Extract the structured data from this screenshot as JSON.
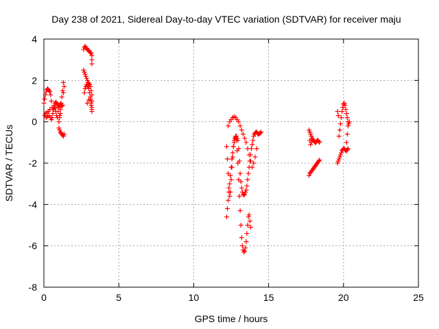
{
  "chart_data": {
    "type": "scatter",
    "title": "Day 238 of 2021, Sidereal Day-to-day VTEC variation (SDTVAR) for receiver maju",
    "xlabel": "GPS time / hours",
    "ylabel": "SDTVAR / TECUs",
    "xlim": [
      0,
      25
    ],
    "ylim": [
      -8,
      4
    ],
    "xticks": [
      "0",
      "5",
      "10",
      "15",
      "20",
      "25"
    ],
    "yticks": [
      "-8",
      "-6",
      "-4",
      "-2",
      "0",
      "2",
      "4"
    ],
    "grid": true,
    "marker": "plus",
    "color": "#ff0000",
    "series": [
      {
        "x": [
          0.0,
          0.05,
          0.1,
          0.15,
          0.2,
          0.25,
          0.3,
          0.35,
          0.4,
          0.45,
          0.5,
          0.55,
          0.4,
          0.3,
          0.2,
          0.1,
          0.05,
          0.15,
          0.25,
          0.35,
          0.45,
          0.5,
          0.55,
          0.6,
          0.65,
          0.7,
          0.75,
          0.8,
          0.85,
          0.9,
          0.95,
          1.0,
          0.95,
          0.9,
          0.85,
          0.8,
          0.75,
          0.7,
          0.65,
          0.6,
          1.0,
          1.05,
          1.1,
          1.15,
          1.2,
          1.25,
          1.3,
          1.35,
          1.05,
          1.1,
          1.15,
          1.2,
          1.25,
          1.3,
          1.35,
          1.3,
          1.25,
          1.2,
          1.15,
          1.1,
          1.05,
          1.0,
          1.05,
          1.1
        ],
        "y": [
          0.9,
          1.1,
          1.3,
          1.45,
          1.55,
          1.6,
          1.55,
          1.5,
          1.45,
          1.3,
          1.0,
          0.7,
          0.6,
          0.5,
          0.45,
          0.4,
          0.3,
          0.2,
          0.25,
          0.3,
          0.2,
          0.1,
          0.2,
          0.4,
          0.6,
          0.7,
          0.65,
          0.5,
          0.3,
          0.2,
          0.5,
          0.7,
          0.75,
          0.85,
          0.9,
          0.95,
          0.9,
          0.8,
          0.7,
          0.6,
          -0.3,
          -0.4,
          -0.5,
          -0.55,
          -0.6,
          -0.65,
          -0.7,
          -0.6,
          0.8,
          0.85,
          0.8,
          0.75,
          0.8,
          1.4,
          1.7,
          1.9,
          1.5,
          1.2,
          0.9,
          0.6,
          0.3,
          0.0,
          0.2,
          0.4
        ]
      },
      {
        "x": [
          2.65,
          2.7,
          2.75,
          2.8,
          2.85,
          2.9,
          2.95,
          3.0,
          3.05,
          3.1,
          3.15,
          3.2,
          3.2,
          3.2,
          2.65,
          2.7,
          2.75,
          2.8,
          2.85,
          2.9,
          2.95,
          3.0,
          3.05,
          3.1,
          3.15,
          3.2,
          3.2,
          3.2,
          3.15,
          3.1,
          3.05,
          3.0,
          2.95,
          2.9,
          2.85,
          2.8,
          2.75,
          2.7,
          2.9,
          3.0,
          3.1,
          3.15,
          3.2,
          3.2
        ],
        "y": [
          3.5,
          3.6,
          3.65,
          3.6,
          3.55,
          3.5,
          3.45,
          3.45,
          3.4,
          3.35,
          3.3,
          3.2,
          3.0,
          2.8,
          2.5,
          2.4,
          2.3,
          2.2,
          2.1,
          2.0,
          1.9,
          1.85,
          1.8,
          1.7,
          1.5,
          1.3,
          1.0,
          0.6,
          0.8,
          1.1,
          1.4,
          1.6,
          1.7,
          1.75,
          1.8,
          1.7,
          1.6,
          1.4,
          0.9,
          1.05,
          1.2,
          0.9,
          0.7,
          0.5
        ]
      },
      {
        "x": [
          12.2,
          12.25,
          12.3,
          12.35,
          12.4,
          12.45,
          12.5,
          12.55,
          12.6,
          12.65,
          12.7,
          12.75,
          12.8,
          12.85,
          12.9,
          12.95,
          13.0,
          13.05,
          13.1,
          13.15,
          13.2,
          13.25,
          13.3,
          13.35,
          13.4,
          13.45,
          13.5,
          13.55,
          13.6,
          13.65,
          13.7,
          13.75,
          13.8,
          13.85,
          13.9,
          13.95,
          14.0,
          14.05,
          14.1,
          14.15,
          14.2,
          14.25,
          14.3,
          14.35,
          14.4,
          14.45,
          14.5,
          12.2,
          12.25,
          12.3,
          12.35,
          12.4,
          12.45,
          12.5,
          12.55,
          12.6,
          12.65,
          12.7,
          12.75,
          12.8,
          12.85,
          12.9,
          12.95,
          13.0,
          13.05,
          13.1,
          13.15,
          13.2,
          13.25,
          13.3,
          13.35,
          13.4,
          13.45,
          13.5,
          13.55,
          13.6,
          13.65,
          13.7,
          13.75,
          13.8,
          12.3,
          12.4,
          12.5,
          12.6,
          12.7,
          12.8,
          12.9,
          13.0,
          13.1,
          13.2,
          13.3,
          13.4,
          13.5,
          13.6,
          13.7,
          13.8,
          13.9,
          14.0,
          14.1,
          14.2
        ],
        "y": [
          -1.2,
          -1.8,
          -2.5,
          -3.2,
          -3.6,
          -3.4,
          -2.8,
          -2.2,
          -1.7,
          -1.2,
          -0.9,
          -0.8,
          -0.75,
          -0.7,
          -0.8,
          -0.9,
          -1.3,
          -1.9,
          -2.5,
          -2.9,
          -3.2,
          -3.4,
          -3.5,
          -3.55,
          -3.5,
          -3.4,
          -3.3,
          -3.1,
          -2.8,
          -2.5,
          -2.2,
          -1.9,
          -1.6,
          -1.3,
          -1.1,
          -0.9,
          -0.7,
          -0.6,
          -0.55,
          -0.5,
          -0.5,
          -0.55,
          -0.6,
          -0.6,
          -0.55,
          -0.55,
          -0.5,
          -4.6,
          -4.2,
          -3.8,
          -3.4,
          -3.0,
          -2.6,
          -2.2,
          -1.8,
          -1.5,
          -1.2,
          -1.0,
          -0.8,
          -0.7,
          -0.9,
          -1.4,
          -2.0,
          -2.8,
          -3.6,
          -4.3,
          -5.0,
          -5.6,
          -6.0,
          -6.2,
          -6.3,
          -6.25,
          -6.1,
          -5.8,
          -5.4,
          -5.0,
          -4.6,
          -4.5,
          -4.8,
          -5.1,
          -0.2,
          0.0,
          0.1,
          0.2,
          0.25,
          0.2,
          0.1,
          0.0,
          -0.2,
          -0.4,
          -0.6,
          -0.8,
          -1.0,
          -1.3,
          -1.6,
          -1.9,
          -2.2,
          -2.0,
          -1.7,
          -1.3
        ]
      },
      {
        "x": [
          17.7,
          17.75,
          17.8,
          17.85,
          17.9,
          17.95,
          18.0,
          18.05,
          18.1,
          18.15,
          18.2,
          18.25,
          18.3,
          18.35,
          18.4,
          18.4,
          18.35,
          18.3,
          18.25,
          18.2,
          18.15,
          18.1,
          18.05,
          18.0,
          17.95,
          17.9,
          17.85,
          17.8,
          17.75,
          17.7,
          17.75,
          17.8,
          17.85,
          17.9
        ],
        "y": [
          -2.6,
          -2.5,
          -2.45,
          -2.4,
          -2.35,
          -2.3,
          -2.25,
          -2.2,
          -2.15,
          -2.1,
          -2.05,
          -2.0,
          -1.95,
          -1.9,
          -1.85,
          -1.0,
          -0.95,
          -0.9,
          -0.9,
          -0.95,
          -1.0,
          -1.0,
          -0.95,
          -0.9,
          -0.85,
          -0.8,
          -0.7,
          -0.6,
          -0.5,
          -0.4,
          -0.9,
          -1.1,
          -1.0,
          -0.9
        ]
      },
      {
        "x": [
          19.6,
          19.65,
          19.7,
          19.75,
          19.8,
          19.85,
          19.9,
          19.95,
          20.0,
          20.05,
          20.1,
          20.15,
          20.2,
          20.25,
          20.3,
          20.3,
          20.25,
          20.2,
          20.15,
          20.1,
          20.05,
          20.0,
          19.95,
          19.9,
          19.85,
          19.8,
          19.75,
          19.7,
          19.65,
          19.6,
          20.2,
          20.25,
          20.3,
          20.35,
          20.4
        ],
        "y": [
          -2.0,
          -1.9,
          -1.8,
          -1.7,
          -1.6,
          -1.5,
          -1.4,
          -1.35,
          -1.3,
          -1.3,
          -1.35,
          -1.4,
          -1.4,
          -1.35,
          -1.3,
          0.0,
          0.2,
          0.4,
          0.6,
          0.8,
          0.9,
          0.85,
          0.7,
          0.5,
          0.2,
          -0.1,
          -0.4,
          -0.7,
          0.3,
          0.5,
          -1.0,
          -0.6,
          -0.2,
          -0.1,
          0.0
        ]
      }
    ]
  }
}
